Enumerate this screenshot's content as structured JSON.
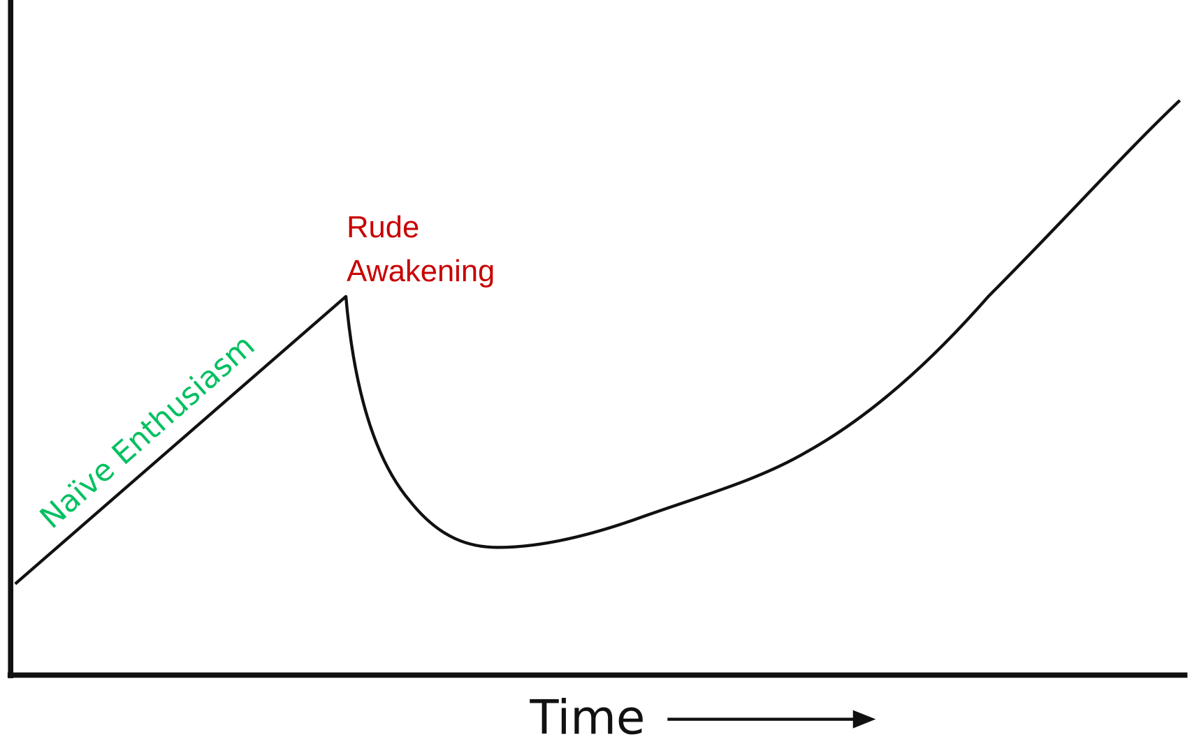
{
  "annotations": {
    "peak": [
      "Rude",
      "Awakening"
    ],
    "slope": "Naïve Enthusiasm"
  },
  "x_axis": {
    "label": "Time"
  }
}
